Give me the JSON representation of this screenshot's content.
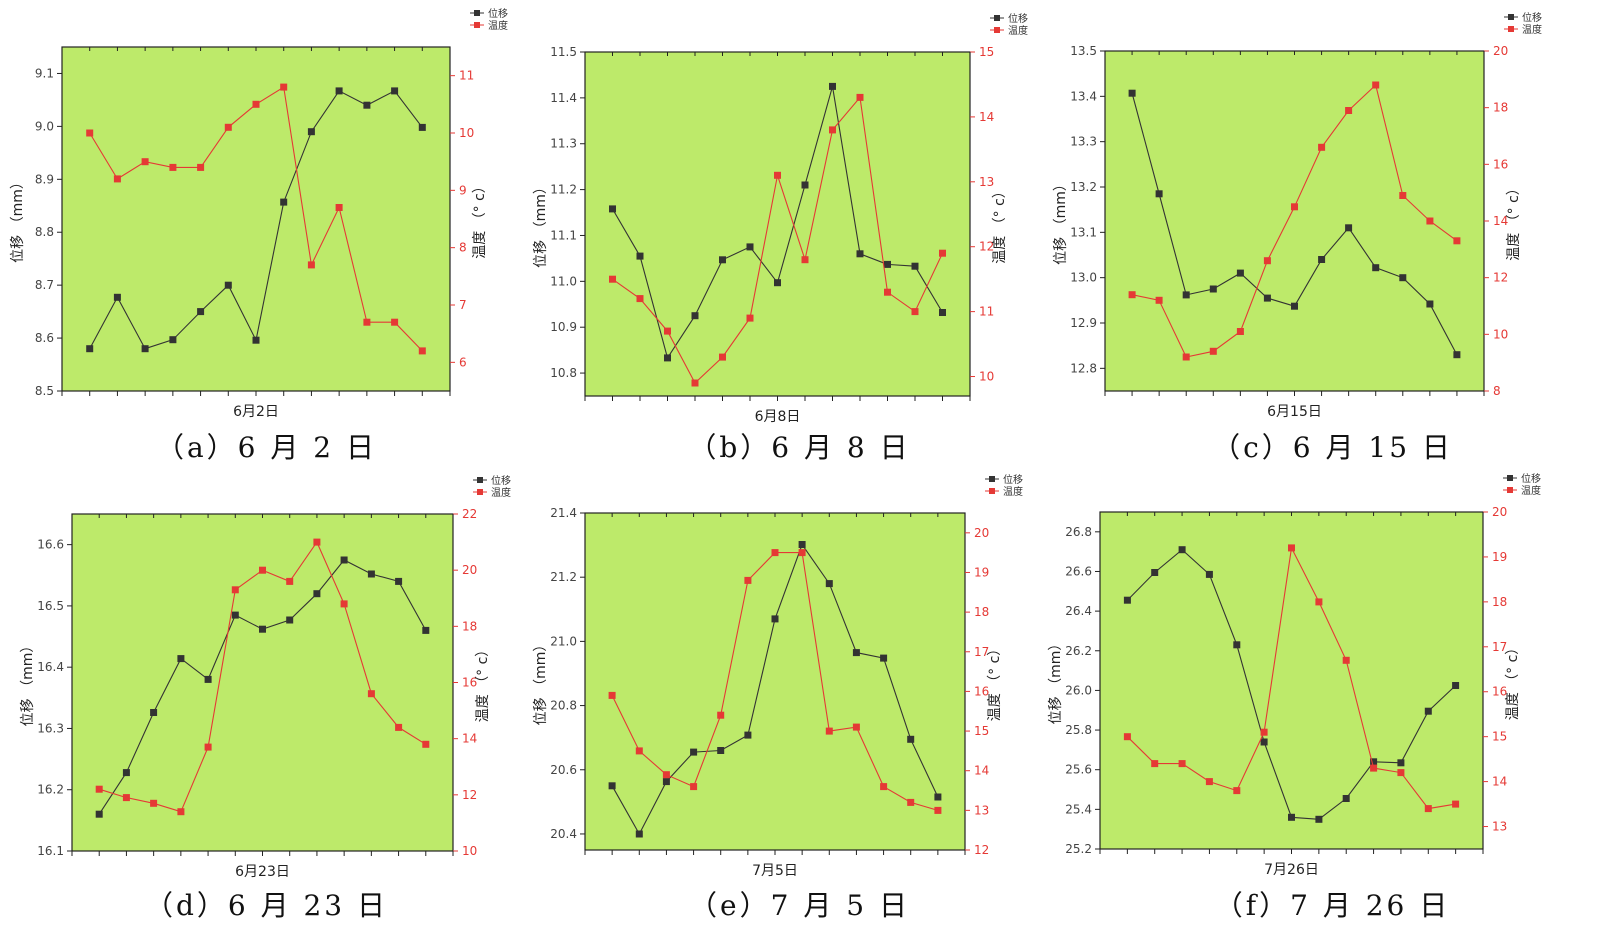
{
  "legend": {
    "displacement": "位移",
    "temperature": "温度"
  },
  "colors": {
    "plot_bg": "#BDEA6A",
    "displacement": "#333333",
    "temperature": "#E53935",
    "axis": "#222222"
  },
  "chart_data": [
    {
      "type": "line",
      "caption": "（a）6 月 2 日",
      "xlabel": "6月2日",
      "ylabel": "位移 （mm）",
      "y2label": "温度 （° c）",
      "ylim": [
        8.5,
        9.15
      ],
      "y2lim": [
        5.5,
        11.5
      ],
      "yticks": [
        8.5,
        8.6,
        8.7,
        8.8,
        8.9,
        9.0,
        9.1
      ],
      "y2ticks": [
        6,
        7,
        8,
        9,
        10,
        11
      ],
      "ydec": 1,
      "y2dec": 0,
      "x_ticks": 14,
      "x_center": 6,
      "x_range": [
        -1,
        13
      ],
      "series": [
        {
          "name": "位移",
          "axis": "left",
          "x": [
            0,
            1,
            2,
            3,
            4,
            5,
            6,
            7,
            8,
            9,
            10,
            11,
            12
          ],
          "values": [
            8.58,
            8.677,
            8.58,
            8.597,
            8.65,
            8.7,
            8.596,
            8.857,
            8.99,
            9.067,
            9.04,
            9.067,
            8.998
          ]
        },
        {
          "name": "温度",
          "axis": "right",
          "x": [
            0,
            1,
            2,
            3,
            4,
            5,
            6,
            7,
            8,
            9,
            10,
            11,
            12
          ],
          "values": [
            10.0,
            9.2,
            9.5,
            9.4,
            9.4,
            10.1,
            10.5,
            10.8,
            7.7,
            8.7,
            6.7,
            6.7,
            6.2
          ]
        }
      ]
    },
    {
      "type": "line",
      "caption": "（b）6 月 8 日",
      "xlabel": "6月8日",
      "ylabel": "位移 （mm）",
      "y2label": "温度 （° c）",
      "ylim": [
        10.75,
        11.5
      ],
      "y2lim": [
        9.7,
        15.0
      ],
      "yticks": [
        10.8,
        10.9,
        11.0,
        11.1,
        11.2,
        11.3,
        11.4,
        11.5
      ],
      "y2ticks": [
        10,
        11,
        12,
        13,
        14,
        15
      ],
      "ydec": 1,
      "y2dec": 0,
      "x_ticks": 14,
      "x_center": 6,
      "x_range": [
        -1,
        13
      ],
      "series": [
        {
          "name": "位移",
          "axis": "left",
          "x": [
            0,
            1,
            2,
            3,
            4,
            5,
            6,
            7,
            8,
            9,
            10,
            11,
            12
          ],
          "values": [
            11.158,
            11.055,
            10.833,
            10.925,
            11.047,
            11.075,
            10.997,
            11.21,
            11.425,
            11.06,
            11.037,
            11.033,
            10.932
          ]
        },
        {
          "name": "温度",
          "axis": "right",
          "x": [
            0,
            1,
            2,
            3,
            4,
            5,
            6,
            7,
            8,
            9,
            10,
            11,
            12
          ],
          "values": [
            11.5,
            11.2,
            10.7,
            9.9,
            10.3,
            10.9,
            13.1,
            11.8,
            13.8,
            14.3,
            11.3,
            11.0,
            11.9
          ]
        }
      ]
    },
    {
      "type": "line",
      "caption": "（c）6 月 15 日",
      "xlabel": "6月15日",
      "ylabel": "位移 （mm）",
      "y2label": "温度 （° c）",
      "ylim": [
        12.75,
        13.5
      ],
      "y2lim": [
        8.0,
        20.0
      ],
      "yticks": [
        12.8,
        12.9,
        13.0,
        13.1,
        13.2,
        13.3,
        13.4,
        13.5
      ],
      "y2ticks": [
        8,
        10,
        12,
        14,
        16,
        18,
        20
      ],
      "ydec": 1,
      "y2dec": 0,
      "x_ticks": 14,
      "x_center": 6,
      "x_range": [
        -1,
        13
      ],
      "series": [
        {
          "name": "位移",
          "axis": "left",
          "x": [
            0,
            1,
            2,
            3,
            4,
            5,
            6,
            7,
            8,
            9,
            10,
            11,
            12
          ],
          "values": [
            13.407,
            13.185,
            12.962,
            12.975,
            13.01,
            12.955,
            12.937,
            13.04,
            13.11,
            13.022,
            13.0,
            12.942,
            12.83
          ]
        },
        {
          "name": "温度",
          "axis": "right",
          "x": [
            0,
            1,
            2,
            3,
            4,
            5,
            6,
            7,
            8,
            9,
            10,
            11,
            12
          ],
          "values": [
            11.4,
            11.2,
            9.2,
            9.4,
            10.1,
            12.6,
            14.5,
            16.6,
            17.9,
            18.8,
            14.9,
            14.0,
            13.3
          ]
        }
      ]
    },
    {
      "type": "line",
      "caption": "（d）6 月 23 日",
      "xlabel": "6月23日",
      "ylabel": "位移 （mm）",
      "y2label": "温度 （° c）",
      "ylim": [
        16.1,
        16.65
      ],
      "y2lim": [
        10.0,
        22.0
      ],
      "yticks": [
        16.1,
        16.2,
        16.3,
        16.4,
        16.5,
        16.6
      ],
      "y2ticks": [
        10,
        12,
        14,
        16,
        18,
        20,
        22
      ],
      "ydec": 1,
      "y2dec": 0,
      "x_ticks": 14,
      "x_center": 6,
      "x_range": [
        -1,
        13
      ],
      "series": [
        {
          "name": "位移",
          "axis": "left",
          "x": [
            0,
            1,
            2,
            3,
            4,
            5,
            6,
            7,
            8,
            9,
            10,
            11,
            12
          ],
          "values": [
            16.16,
            16.228,
            16.326,
            16.414,
            16.38,
            16.485,
            16.462,
            16.477,
            16.52,
            16.575,
            16.552,
            16.54,
            16.46
          ]
        },
        {
          "name": "温度",
          "axis": "right",
          "x": [
            0,
            1,
            2,
            3,
            4,
            5,
            6,
            7,
            8,
            9,
            10,
            11,
            12
          ],
          "values": [
            12.2,
            11.9,
            11.7,
            11.4,
            13.7,
            19.3,
            20.0,
            19.6,
            21.0,
            18.8,
            15.6,
            14.4,
            13.8
          ]
        }
      ]
    },
    {
      "type": "line",
      "caption": "（e）7 月 5 日",
      "xlabel": "7月5日",
      "ylabel": "位移 （mm）",
      "y2label": "温度 （° c）",
      "ylim": [
        20.35,
        21.4
      ],
      "y2lim": [
        12.0,
        20.5
      ],
      "yticks": [
        20.4,
        20.6,
        20.8,
        21.0,
        21.2,
        21.4
      ],
      "y2ticks": [
        12,
        13,
        14,
        15,
        16,
        17,
        18,
        19,
        20
      ],
      "ydec": 1,
      "y2dec": 0,
      "x_ticks": 14,
      "x_center": 7,
      "x_range": [
        -1,
        13
      ],
      "series": [
        {
          "name": "位移",
          "axis": "left",
          "x": [
            0,
            1,
            2,
            3,
            4,
            5,
            6,
            7,
            8,
            9,
            10,
            11,
            12
          ],
          "values": [
            20.55,
            20.4,
            20.563,
            20.655,
            20.66,
            20.708,
            21.07,
            21.302,
            21.18,
            20.965,
            20.948,
            20.695,
            20.515
          ]
        },
        {
          "name": "温度",
          "axis": "right",
          "x": [
            0,
            1,
            2,
            3,
            4,
            5,
            6,
            7,
            8,
            9,
            10,
            11,
            12
          ],
          "values": [
            15.9,
            14.5,
            13.9,
            13.6,
            15.4,
            18.8,
            19.5,
            19.5,
            15.0,
            15.1,
            13.6,
            13.2,
            13.0
          ]
        }
      ]
    },
    {
      "type": "line",
      "caption": "（f）7 月 26 日",
      "xlabel": "7月26日",
      "ylabel": "位移 （mm）",
      "y2label": "温度 （° c）",
      "ylim": [
        25.2,
        26.9
      ],
      "y2lim": [
        12.5,
        20.0
      ],
      "yticks": [
        25.2,
        25.4,
        25.6,
        25.8,
        26.0,
        26.2,
        26.4,
        26.6,
        26.8
      ],
      "y2ticks": [
        13,
        14,
        15,
        16,
        17,
        18,
        19,
        20
      ],
      "ydec": 1,
      "y2dec": 0,
      "x_ticks": 14,
      "x_center": 6,
      "x_range": [
        -1,
        13
      ],
      "series": [
        {
          "name": "位移",
          "axis": "left",
          "x": [
            0,
            1,
            2,
            3,
            4,
            5,
            6,
            7,
            8,
            9,
            10,
            11,
            12
          ],
          "values": [
            26.455,
            26.595,
            26.71,
            26.585,
            26.23,
            25.74,
            25.36,
            25.35,
            25.455,
            25.64,
            25.635,
            25.895,
            26.025
          ]
        },
        {
          "name": "温度",
          "axis": "right",
          "x": [
            0,
            1,
            2,
            3,
            4,
            5,
            6,
            7,
            8,
            9,
            10,
            11,
            12
          ],
          "values": [
            15.0,
            14.4,
            14.4,
            14.0,
            13.8,
            15.1,
            19.2,
            18.0,
            16.7,
            14.3,
            14.2,
            13.4,
            13.5
          ]
        }
      ]
    }
  ]
}
